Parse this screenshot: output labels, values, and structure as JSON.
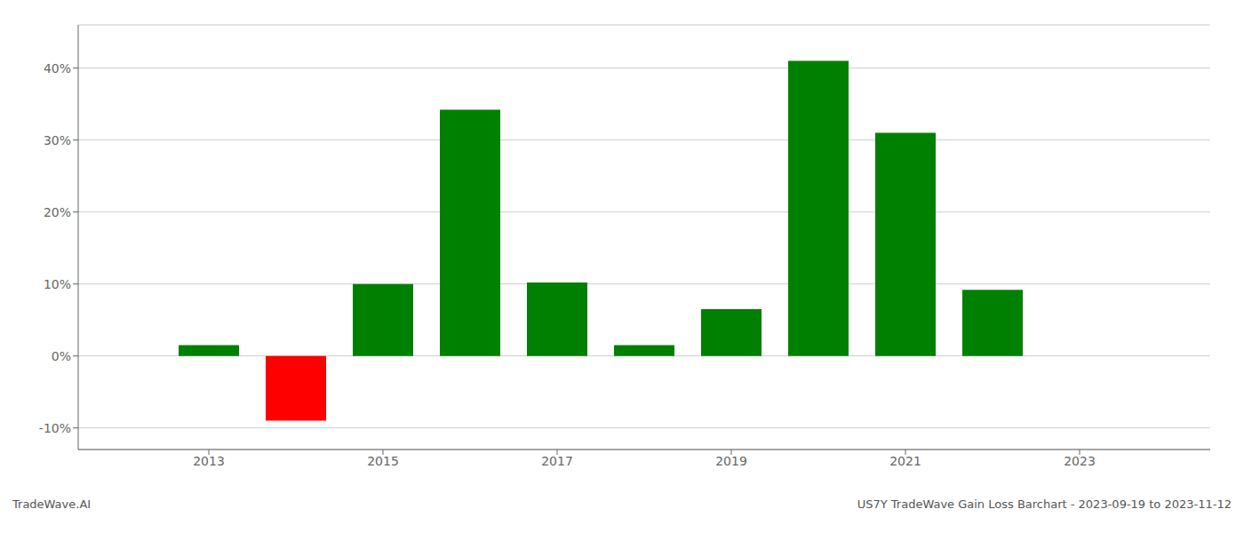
{
  "chart_data": {
    "type": "bar",
    "x": [
      2013,
      2014,
      2015,
      2016,
      2017,
      2018,
      2019,
      2020,
      2021,
      2022
    ],
    "values": [
      1.5,
      -9.0,
      10.0,
      34.2,
      10.2,
      1.5,
      6.5,
      41.0,
      31.0,
      9.2
    ],
    "colors": [
      "#008000",
      "#ff0000",
      "#008000",
      "#008000",
      "#008000",
      "#008000",
      "#008000",
      "#008000",
      "#008000",
      "#008000"
    ],
    "xlim": [
      2011.5,
      2024.5
    ],
    "xticks": [
      2013,
      2015,
      2017,
      2019,
      2021,
      2023
    ],
    "ylim": [
      -13,
      46
    ],
    "yticks": [
      {
        "value": -10,
        "label": "-10%"
      },
      {
        "value": 0,
        "label": "0%"
      },
      {
        "value": 10,
        "label": "10%"
      },
      {
        "value": 20,
        "label": "20%"
      },
      {
        "value": 30,
        "label": "30%"
      },
      {
        "value": 40,
        "label": "40%"
      }
    ],
    "grid": true,
    "annotations": [
      "TradeWave.AI",
      "US7Y TradeWave Gain Loss Barchart - 2023-09-19 to 2023-11-12"
    ]
  }
}
